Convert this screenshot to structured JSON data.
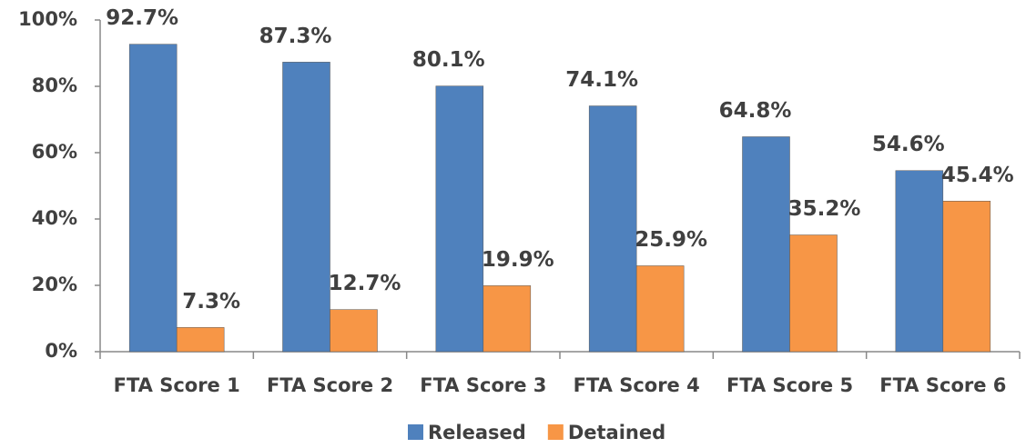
{
  "chart_data": {
    "type": "bar",
    "categories": [
      "FTA Score 1",
      "FTA Score 2",
      "FTA Score 3",
      "FTA Score 4",
      "FTA Score 5",
      "FTA Score 6"
    ],
    "series": [
      {
        "name": "Released",
        "color": "#4f81bd",
        "values": [
          92.7,
          87.3,
          80.1,
          74.1,
          64.8,
          54.6
        ],
        "value_labels": [
          "92.7%",
          "87.3%",
          "80.1%",
          "74.1%",
          "64.8%",
          "54.6%"
        ]
      },
      {
        "name": "Detained",
        "color": "#f79646",
        "values": [
          7.3,
          12.7,
          19.9,
          25.9,
          35.2,
          45.4
        ],
        "value_labels": [
          "7.3%",
          "12.7%",
          "19.9%",
          "25.9%",
          "35.2%",
          "45.4%"
        ]
      }
    ],
    "ylim": [
      0,
      100
    ],
    "yticks": [
      {
        "value": 0,
        "label": "0%"
      },
      {
        "value": 20,
        "label": "20%"
      },
      {
        "value": 40,
        "label": "40%"
      },
      {
        "value": 60,
        "label": "60%"
      },
      {
        "value": 80,
        "label": "80%"
      },
      {
        "value": 100,
        "label": "100%"
      }
    ],
    "grid": false,
    "legend": "bottom"
  }
}
